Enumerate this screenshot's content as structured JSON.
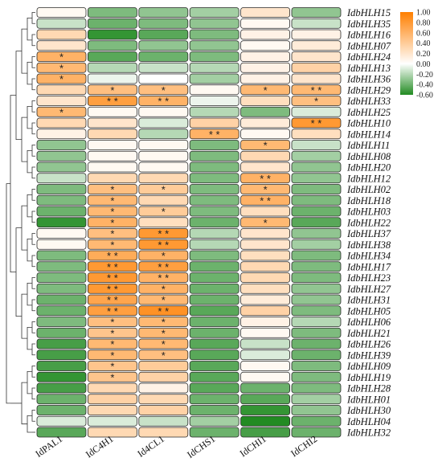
{
  "chart_data": {
    "type": "heatmap",
    "columns": [
      "IdPAL1",
      "IdC4H1",
      "Id4CL1",
      "IdCHS1",
      "IdCHI1",
      "IdCHI2"
    ],
    "rows": [
      "IdbHLH15",
      "IdbHLH35",
      "IdbHLH16",
      "IdbHLH07",
      "IdbHLH24",
      "IdbHLH13",
      "IdbHLH36",
      "IdbHLH29",
      "IdbHLH33",
      "IdbHLH25",
      "IdbHLH10",
      "IdbHLH14",
      "IdbHLH11",
      "IdbHLH08",
      "IdbHLH20",
      "IdbHLH12",
      "IdbHLH02",
      "IdbHLH18",
      "IdbHLH03",
      "IdbHLH22",
      "IdbHLH37",
      "IdbHLH38",
      "IdbHLH34",
      "IdbHLH17",
      "IdbHLH23",
      "IdbHLH27",
      "IdbHLH31",
      "IdbHLH05",
      "IdbHLH06",
      "IdbHLH21",
      "IdbHLH26",
      "IdbHLH39",
      "IdbHLH09",
      "IdbHLH19",
      "IdbHLH28",
      "IdbHLH01",
      "IdbHLH30",
      "IdbHLH04",
      "IdbHLH32"
    ],
    "values": [
      [
        0.05,
        -0.35,
        -0.3,
        -0.25,
        0.2,
        -0.3
      ],
      [
        -0.15,
        -0.4,
        -0.35,
        -0.3,
        0.05,
        -0.15
      ],
      [
        0.3,
        -0.55,
        -0.45,
        -0.35,
        0.1,
        0.1
      ],
      [
        0.2,
        -0.35,
        -0.3,
        -0.3,
        0.05,
        0.15
      ],
      [
        0.6,
        -0.45,
        -0.4,
        -0.35,
        0.1,
        0.2
      ],
      [
        0.55,
        -0.2,
        -0.15,
        -0.2,
        0.1,
        0.35
      ],
      [
        0.6,
        -0.05,
        0.0,
        -0.25,
        0.1,
        0.2
      ],
      [
        0.3,
        0.5,
        0.5,
        0.05,
        0.55,
        0.55
      ],
      [
        0.2,
        0.75,
        0.6,
        -0.05,
        0.25,
        0.5
      ],
      [
        0.55,
        0.05,
        0.05,
        -0.2,
        -0.35,
        -0.1
      ],
      [
        0.3,
        0.2,
        -0.1,
        0.35,
        0.15,
        0.8
      ],
      [
        0.1,
        0.3,
        -0.2,
        0.6,
        0.05,
        0.25
      ],
      [
        -0.3,
        0.05,
        0.05,
        -0.35,
        0.55,
        -0.15
      ],
      [
        -0.3,
        0.05,
        0.05,
        -0.35,
        0.3,
        -0.25
      ],
      [
        -0.3,
        0.05,
        0.05,
        -0.35,
        0.2,
        -0.3
      ],
      [
        -0.15,
        0.3,
        0.3,
        -0.35,
        0.6,
        -0.3
      ],
      [
        -0.35,
        0.5,
        0.4,
        -0.35,
        0.55,
        -0.35
      ],
      [
        -0.35,
        0.55,
        0.3,
        -0.35,
        0.6,
        -0.35
      ],
      [
        -0.4,
        0.55,
        0.4,
        -0.35,
        0.25,
        -0.4
      ],
      [
        -0.55,
        0.6,
        0.25,
        -0.4,
        0.55,
        -0.45
      ],
      [
        0.05,
        0.5,
        0.8,
        -0.2,
        0.2,
        -0.3
      ],
      [
        0.05,
        0.55,
        0.8,
        -0.2,
        0.2,
        -0.25
      ],
      [
        -0.35,
        0.65,
        0.6,
        -0.35,
        0.25,
        -0.35
      ],
      [
        -0.35,
        0.8,
        0.75,
        -0.4,
        0.3,
        -0.35
      ],
      [
        -0.35,
        0.8,
        0.6,
        -0.4,
        0.3,
        -0.35
      ],
      [
        -0.35,
        0.8,
        0.6,
        -0.4,
        0.25,
        -0.3
      ],
      [
        -0.4,
        0.7,
        0.55,
        -0.4,
        0.15,
        -0.3
      ],
      [
        -0.4,
        0.75,
        0.85,
        -0.45,
        0.35,
        -0.35
      ],
      [
        -0.35,
        0.5,
        0.55,
        -0.4,
        0.1,
        -0.2
      ],
      [
        -0.4,
        0.45,
        0.55,
        -0.4,
        0.05,
        -0.35
      ],
      [
        -0.5,
        0.55,
        0.55,
        -0.45,
        -0.15,
        -0.4
      ],
      [
        -0.5,
        0.55,
        0.5,
        -0.45,
        -0.1,
        -0.4
      ],
      [
        -0.5,
        0.45,
        0.4,
        -0.45,
        0.05,
        -0.35
      ],
      [
        -0.55,
        0.45,
        0.35,
        -0.45,
        0.05,
        -0.35
      ],
      [
        -0.5,
        0.3,
        0.1,
        -0.45,
        -0.4,
        -0.35
      ],
      [
        -0.4,
        0.35,
        0.3,
        -0.4,
        -0.45,
        -0.25
      ],
      [
        -0.4,
        0.3,
        0.35,
        -0.4,
        -0.55,
        -0.3
      ],
      [
        -0.1,
        -0.1,
        -0.15,
        -0.25,
        -0.6,
        -0.4
      ],
      [
        -0.45,
        0.3,
        0.3,
        -0.4,
        -0.5,
        -0.4
      ]
    ],
    "significance": [
      [
        "",
        "",
        "",
        "",
        "",
        ""
      ],
      [
        "",
        "",
        "",
        "",
        "",
        ""
      ],
      [
        "",
        "",
        "",
        "",
        "",
        ""
      ],
      [
        "",
        "",
        "",
        "",
        "",
        ""
      ],
      [
        "*",
        "",
        "",
        "",
        "",
        ""
      ],
      [
        "*",
        "",
        "",
        "",
        "",
        ""
      ],
      [
        "*",
        "",
        "",
        "",
        "",
        ""
      ],
      [
        "",
        "*",
        "*",
        "",
        "*",
        "**"
      ],
      [
        "",
        "**",
        "**",
        "",
        "",
        "*"
      ],
      [
        "*",
        "",
        "",
        "",
        "",
        ""
      ],
      [
        "",
        "",
        "",
        "",
        "",
        "**"
      ],
      [
        "",
        "",
        "",
        "**",
        "",
        ""
      ],
      [
        "",
        "",
        "",
        "",
        "*",
        ""
      ],
      [
        "",
        "",
        "",
        "",
        "",
        ""
      ],
      [
        "",
        "",
        "",
        "",
        "",
        ""
      ],
      [
        "",
        "",
        "",
        "",
        "**",
        ""
      ],
      [
        "",
        "*",
        "*",
        "",
        "*",
        ""
      ],
      [
        "",
        "*",
        "",
        "",
        "**",
        ""
      ],
      [
        "",
        "*",
        "*",
        "",
        "",
        ""
      ],
      [
        "",
        "*",
        "",
        "",
        "*",
        ""
      ],
      [
        "",
        "*",
        "**",
        "",
        "",
        ""
      ],
      [
        "",
        "*",
        "**",
        "",
        "",
        ""
      ],
      [
        "",
        "**",
        "*",
        "",
        "",
        ""
      ],
      [
        "",
        "**",
        "**",
        "",
        "",
        ""
      ],
      [
        "",
        "**",
        "**",
        "",
        "",
        ""
      ],
      [
        "",
        "**",
        "*",
        "",
        "",
        ""
      ],
      [
        "",
        "**",
        "*",
        "",
        "",
        ""
      ],
      [
        "",
        "**",
        "**",
        "",
        "",
        ""
      ],
      [
        "",
        "*",
        "*",
        "",
        "",
        ""
      ],
      [
        "",
        "*",
        "*",
        "",
        "",
        ""
      ],
      [
        "",
        "*",
        "*",
        "",
        "",
        ""
      ],
      [
        "",
        "*",
        "*",
        "",
        "",
        ""
      ],
      [
        "",
        "*",
        "",
        "",
        "",
        ""
      ],
      [
        "",
        "*",
        "",
        "",
        "",
        ""
      ],
      [
        "",
        "",
        "",
        "",
        "",
        ""
      ],
      [
        "",
        "",
        "",
        "",
        "",
        ""
      ],
      [
        "",
        "",
        "",
        "",
        "",
        ""
      ],
      [
        "",
        "",
        "",
        "",
        "",
        ""
      ],
      [
        "",
        "",
        "",
        "",
        "",
        ""
      ]
    ],
    "legend": {
      "ticks": [
        "1.00",
        "0.80",
        "0.60",
        "0.40",
        "0.20",
        "0.00",
        "-0.20",
        "-0.40",
        "-0.60"
      ],
      "tick_values": [
        1.0,
        0.8,
        0.6,
        0.4,
        0.2,
        0.0,
        -0.2,
        -0.4,
        -0.6
      ],
      "range": [
        -0.6,
        1.0
      ],
      "placement": "top-right",
      "colors": [
        "#228b22",
        "#ffffff",
        "#ff7f00"
      ]
    },
    "dendrogram": "left"
  }
}
